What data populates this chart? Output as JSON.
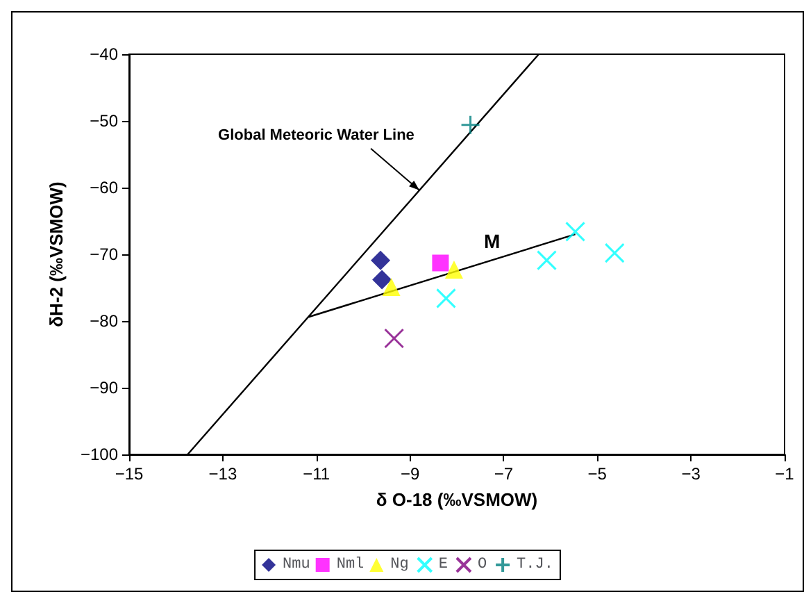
{
  "chart_data": {
    "type": "scatter",
    "xlabel": "δ O-18 (‰VSMOW)",
    "ylabel": "δH-2 (‰VSMOW)",
    "xlim": [
      -15,
      -1
    ],
    "xticks": [
      -15,
      -13,
      -11,
      -9,
      -7,
      -5,
      -3,
      -1
    ],
    "ylim": [
      -100,
      -40
    ],
    "yticks": [
      -100,
      -90,
      -80,
      -70,
      -60,
      -50,
      -40
    ],
    "grid": false,
    "legend": "bottom",
    "annotations": [
      {
        "text": "Global Meteoric Water Line",
        "x": -8.8,
        "y": -60.4
      },
      {
        "text": "M",
        "x": -7.25,
        "y": -70.9
      }
    ],
    "series": [
      {
        "type": "line",
        "color": "#000000",
        "line_style": "solid",
        "marker": "none",
        "x": [
          -13.75,
          -6.25
        ],
        "values": [
          -100,
          -40
        ]
      },
      {
        "type": "line",
        "color": "#000000",
        "line_style": "solid",
        "marker": "none",
        "x": [
          -11.17,
          -5.47
        ],
        "values": [
          -79.4,
          -67.0
        ]
      },
      {
        "name": "Nmu",
        "color": "#000080",
        "marker": "diamond",
        "x": [
          -9.63,
          -9.6
        ],
        "values": [
          -70.9,
          -73.8
        ]
      },
      {
        "name": "Nml",
        "color": "#ff00ff",
        "marker": "square",
        "x": [
          -8.35
        ],
        "values": [
          -71.3
        ]
      },
      {
        "name": "Ng",
        "color": "#ffff00",
        "marker": "triangle",
        "x": [
          -9.4,
          -8.06
        ],
        "values": [
          -74.9,
          -72.3
        ]
      },
      {
        "name": "E",
        "color": "#00ffff",
        "marker": "cross",
        "x": [
          -8.23,
          -6.08,
          -5.47,
          -4.63
        ],
        "values": [
          -76.6,
          -70.9,
          -66.6,
          -69.8
        ]
      },
      {
        "name": "O",
        "color": "#800080",
        "marker": "cross",
        "x": [
          -9.34
        ],
        "values": [
          -82.6
        ]
      },
      {
        "name": "T.J.",
        "color": "#008080",
        "marker": "plus",
        "x": [
          -7.71
        ],
        "values": [
          -50.6
        ]
      }
    ]
  }
}
